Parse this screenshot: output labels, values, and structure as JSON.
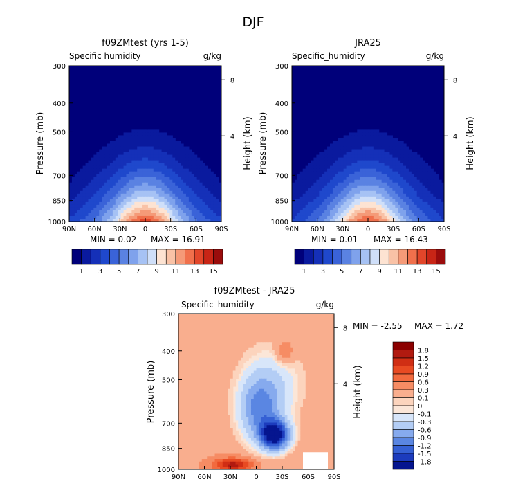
{
  "page_title": "DJF",
  "chart_data": [
    {
      "type": "contour",
      "title": "f09ZMtest (yrs 1-5)",
      "variable": "Specific humidity",
      "units": "g/kg",
      "ylabel": "Pressure (mb)",
      "y2label": "Height (km)",
      "x_ticks": [
        "90N",
        "60N",
        "30N",
        "0",
        "30S",
        "60S",
        "90S"
      ],
      "y_ticks": [
        300,
        400,
        500,
        700,
        850,
        1000
      ],
      "height_ticks": [
        8,
        4
      ],
      "min_label": "MIN =   0.02",
      "max_label": "MAX =  16.91",
      "min": 0.02,
      "max": 16.91,
      "colorbar": {
        "orientation": "horizontal",
        "labels": [
          "1",
          "3",
          "5",
          "7",
          "9",
          "11",
          "13",
          "15"
        ],
        "levels": [
          1,
          2,
          3,
          4,
          5,
          6,
          7,
          8,
          9,
          10,
          11,
          12,
          13,
          14,
          15
        ]
      }
    },
    {
      "type": "contour",
      "title": "JRA25",
      "variable": "Specific_humidity",
      "units": "g/kg",
      "ylabel": "Pressure (mb)",
      "y2label": "Height (km)",
      "x_ticks": [
        "90N",
        "60N",
        "30N",
        "0",
        "30S",
        "60S",
        "90S"
      ],
      "y_ticks": [
        300,
        400,
        500,
        700,
        850,
        1000
      ],
      "height_ticks": [
        8,
        4
      ],
      "min_label": "MIN =   0.01",
      "max_label": "MAX =  16.43",
      "min": 0.01,
      "max": 16.43,
      "colorbar": {
        "orientation": "horizontal",
        "labels": [
          "1",
          "3",
          "5",
          "7",
          "9",
          "11",
          "13",
          "15"
        ],
        "levels": [
          1,
          2,
          3,
          4,
          5,
          6,
          7,
          8,
          9,
          10,
          11,
          12,
          13,
          14,
          15
        ]
      }
    },
    {
      "type": "contour",
      "title": "f09ZMtest - JRA25",
      "variable": "Specific_humidity",
      "units": "g/kg",
      "ylabel": "Pressure (mb)",
      "y2label": "Height (km)",
      "x_ticks": [
        "90N",
        "60N",
        "30N",
        "0",
        "30S",
        "60S",
        "90S"
      ],
      "y_ticks": [
        300,
        400,
        500,
        700,
        850,
        1000
      ],
      "height_ticks": [
        8,
        4
      ],
      "min_label": "MIN =  -2.55",
      "max_label": "MAX =   1.72",
      "min": -2.55,
      "max": 1.72,
      "colorbar": {
        "orientation": "vertical",
        "labels": [
          "1.8",
          "1.5",
          "1.2",
          "0.9",
          "0.6",
          "0.3",
          "0.1",
          "0",
          "-0.1",
          "-0.3",
          "-0.6",
          "-0.9",
          "-1.2",
          "-1.5",
          "-1.8"
        ]
      }
    }
  ],
  "colors": {
    "abs_scale": [
      "#00007a",
      "#0a1a9e",
      "#1530b8",
      "#1f48cc",
      "#3a63d8",
      "#5a82e2",
      "#7fa2ec",
      "#a6c2f4",
      "#cfdff9",
      "#fde3d2",
      "#f9c2a6",
      "#f59a78",
      "#f0704c",
      "#e2462a",
      "#c82516",
      "#9a0c0c"
    ],
    "diff_scale": [
      "#8b0000",
      "#b11a10",
      "#d02e14",
      "#e84a22",
      "#f26a3e",
      "#f68c64",
      "#f9ae8e",
      "#fcd4bd",
      "#fbe6d8",
      "#d8e6fa",
      "#b3cdf5",
      "#86aaee",
      "#5a86e2",
      "#3560d4",
      "#1c3bbd",
      "#05158f"
    ]
  }
}
